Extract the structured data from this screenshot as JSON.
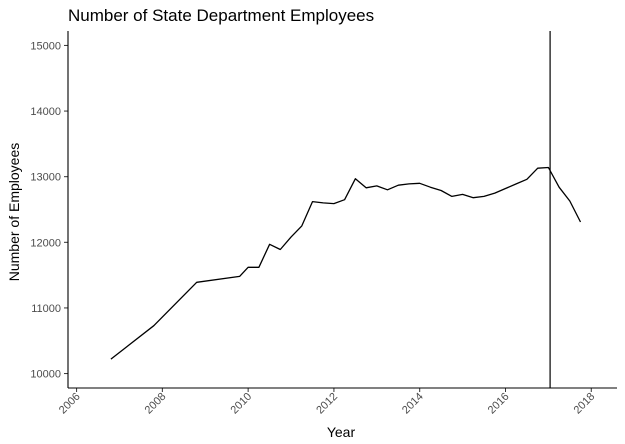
{
  "chart_data": {
    "type": "line",
    "title": "Number of State Department Employees",
    "xlabel": "Year",
    "ylabel": "Number of Employees",
    "xlim": [
      2005.8,
      2018.6
    ],
    "ylim": [
      9780,
      15220
    ],
    "x_ticks": [
      {
        "value": 2006,
        "label": "2006"
      },
      {
        "value": 2008,
        "label": "2008"
      },
      {
        "value": 2010,
        "label": "2010"
      },
      {
        "value": 2012,
        "label": "2012"
      },
      {
        "value": 2014,
        "label": "2014"
      },
      {
        "value": 2016,
        "label": "2016"
      },
      {
        "value": 2018,
        "label": "2018"
      }
    ],
    "y_ticks": [
      {
        "value": 10000,
        "label": "10000"
      },
      {
        "value": 11000,
        "label": "11000"
      },
      {
        "value": 12000,
        "label": "12000"
      },
      {
        "value": 13000,
        "label": "13000"
      },
      {
        "value": 14000,
        "label": "14000"
      },
      {
        "value": 15000,
        "label": "15000"
      }
    ],
    "grid": false,
    "legend": "none",
    "line_color": "#000000",
    "reference_line": {
      "orientation": "vertical",
      "x": 2017.04
    },
    "series": [
      {
        "x": [
          2006.8,
          2007.8,
          2008.8,
          2009.8,
          2010.0,
          2010.25,
          2010.5,
          2010.75,
          2011.0,
          2011.25,
          2011.5,
          2011.75,
          2012.0,
          2012.25,
          2012.5,
          2012.75,
          2013.0,
          2013.25,
          2013.5,
          2013.75,
          2014.0,
          2014.25,
          2014.5,
          2014.75,
          2015.0,
          2015.25,
          2015.5,
          2015.75,
          2016.0,
          2016.25,
          2016.5,
          2016.75,
          2017.0,
          2017.25,
          2017.5,
          2017.75
        ],
        "y": [
          10220,
          10730,
          11390,
          11480,
          11620,
          11620,
          11970,
          11890,
          12080,
          12250,
          12620,
          12600,
          12590,
          12650,
          12970,
          12830,
          12860,
          12800,
          12870,
          12890,
          12900,
          12840,
          12790,
          12700,
          12730,
          12680,
          12700,
          12750,
          12820,
          12890,
          12960,
          13130,
          13140,
          12840,
          12630,
          12310
        ]
      }
    ]
  }
}
